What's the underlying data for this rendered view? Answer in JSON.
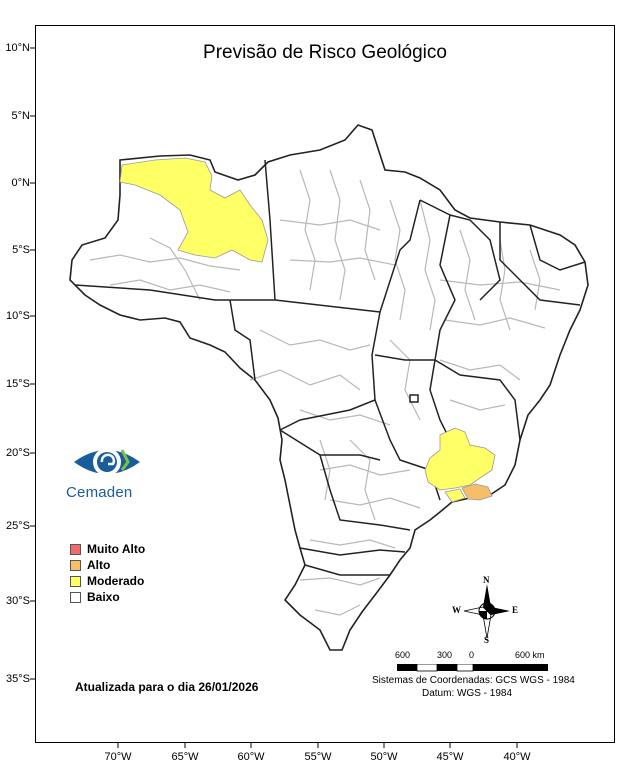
{
  "title": "Previsão de Risco Geológico",
  "lat_ticks": [
    "10°N",
    "5°N",
    "0°N",
    "5°S",
    "10°S",
    "15°S",
    "20°S",
    "25°S",
    "30°S",
    "35°S"
  ],
  "lon_ticks": [
    "70°W",
    "65°W",
    "60°W",
    "55°W",
    "50°W",
    "45°W",
    "40°W"
  ],
  "legend": {
    "items": [
      {
        "label": "Muito Alto",
        "color": "#f26b6b"
      },
      {
        "label": "Alto",
        "color": "#f7be6a"
      },
      {
        "label": "Moderado",
        "color": "#ffff66"
      },
      {
        "label": "Baixo",
        "color": "#ffffff"
      }
    ]
  },
  "logo": {
    "text": "Cemaden",
    "icon": "eye-logo-icon"
  },
  "updated": "Atualizada para o dia 26/01/2026",
  "scale": {
    "labels": [
      "600",
      "300",
      "0",
      "600 km"
    ]
  },
  "coordinates": {
    "line1": "Sistemas de Coordenadas: GCS WGS - 1984",
    "line2": "Datum: WGS - 1984"
  },
  "compass": {
    "n": "N",
    "s": "S",
    "e": "E",
    "w": "W"
  },
  "colors": {
    "moderado": "#ffff66",
    "alto": "#f7be6a",
    "muito_alto": "#f26b6b",
    "state_border": "#222222",
    "municipal_border": "#b8b8b8",
    "logo_blue": "#1a5d9c"
  }
}
